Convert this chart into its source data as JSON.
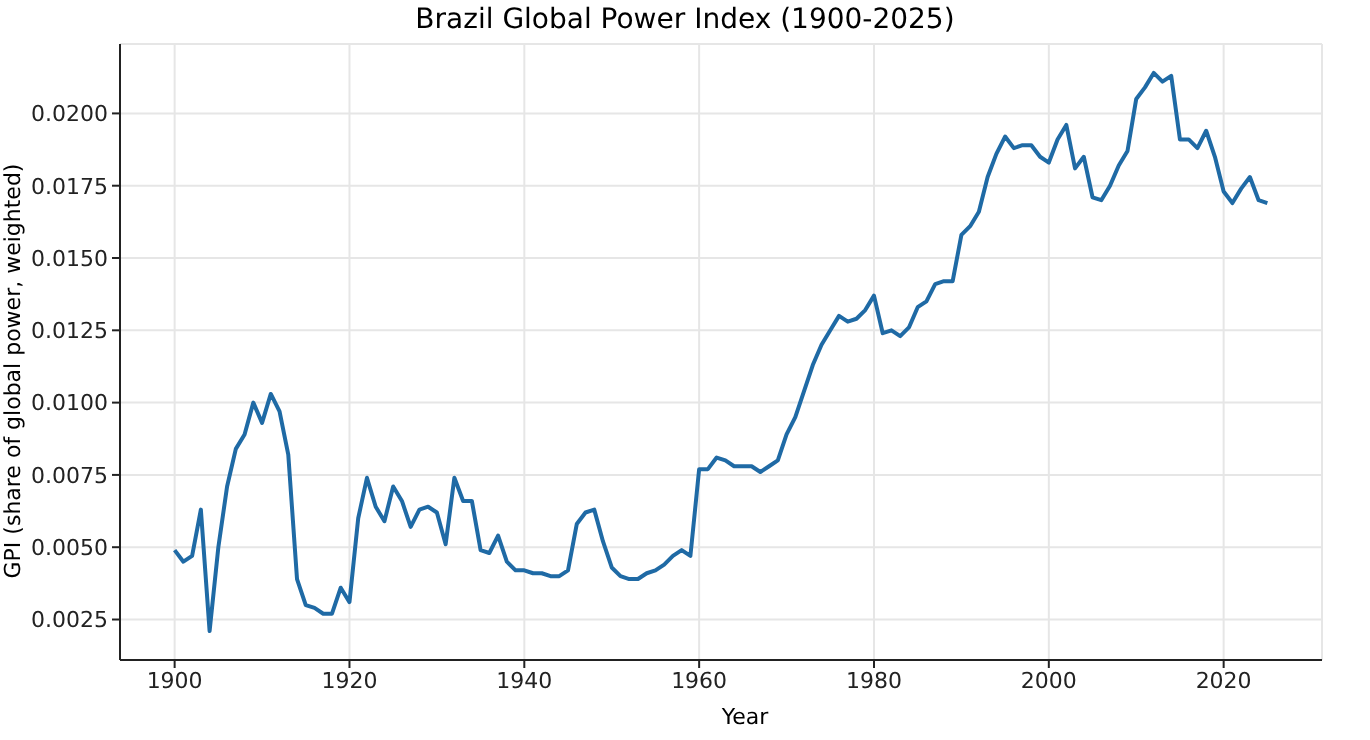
{
  "chart_data": {
    "type": "line",
    "title": "Brazil Global Power Index (1900-2025)",
    "xlabel": "Year",
    "ylabel": "GPI (share of global power, weighted)",
    "x": [
      1900,
      1901,
      1902,
      1903,
      1904,
      1905,
      1906,
      1907,
      1908,
      1909,
      1910,
      1911,
      1912,
      1913,
      1914,
      1915,
      1916,
      1917,
      1918,
      1919,
      1920,
      1921,
      1922,
      1923,
      1924,
      1925,
      1926,
      1927,
      1928,
      1929,
      1930,
      1931,
      1932,
      1933,
      1934,
      1935,
      1936,
      1937,
      1938,
      1939,
      1940,
      1941,
      1942,
      1943,
      1944,
      1945,
      1946,
      1947,
      1948,
      1949,
      1950,
      1951,
      1952,
      1953,
      1954,
      1955,
      1956,
      1957,
      1958,
      1959,
      1960,
      1961,
      1962,
      1963,
      1964,
      1965,
      1966,
      1967,
      1968,
      1969,
      1970,
      1971,
      1972,
      1973,
      1974,
      1975,
      1976,
      1977,
      1978,
      1979,
      1980,
      1981,
      1982,
      1983,
      1984,
      1985,
      1986,
      1987,
      1988,
      1989,
      1990,
      1991,
      1992,
      1993,
      1994,
      1995,
      1996,
      1997,
      1998,
      1999,
      2000,
      2001,
      2002,
      2003,
      2004,
      2005,
      2006,
      2007,
      2008,
      2009,
      2010,
      2011,
      2012,
      2013,
      2014,
      2015,
      2016,
      2017,
      2018,
      2019,
      2020,
      2021,
      2022,
      2023,
      2024,
      2025
    ],
    "series": [
      {
        "color": "#1f6aa5",
        "values": [
          0.0049,
          0.0045,
          0.0047,
          0.0063,
          0.0021,
          0.005,
          0.0071,
          0.0084,
          0.0089,
          0.01,
          0.0093,
          0.0103,
          0.0097,
          0.0082,
          0.0039,
          0.003,
          0.0029,
          0.0027,
          0.0027,
          0.0036,
          0.0031,
          0.006,
          0.0074,
          0.0064,
          0.0059,
          0.0071,
          0.0066,
          0.0057,
          0.0063,
          0.0064,
          0.0062,
          0.0051,
          0.0074,
          0.0066,
          0.0066,
          0.0049,
          0.0048,
          0.0054,
          0.0045,
          0.0042,
          0.0042,
          0.0041,
          0.0041,
          0.004,
          0.004,
          0.0042,
          0.0058,
          0.0062,
          0.0063,
          0.0052,
          0.0043,
          0.004,
          0.0039,
          0.0039,
          0.0041,
          0.0042,
          0.0044,
          0.0047,
          0.0049,
          0.0047,
          0.0077,
          0.0077,
          0.0081,
          0.008,
          0.0078,
          0.0078,
          0.0078,
          0.0076,
          0.0078,
          0.008,
          0.0089,
          0.0095,
          0.0104,
          0.0113,
          0.012,
          0.0125,
          0.013,
          0.0128,
          0.0129,
          0.0132,
          0.0137,
          0.0124,
          0.0125,
          0.0123,
          0.0126,
          0.0133,
          0.0135,
          0.0141,
          0.0142,
          0.0142,
          0.0158,
          0.0161,
          0.0166,
          0.0178,
          0.0186,
          0.0192,
          0.0188,
          0.0189,
          0.0189,
          0.0185,
          0.0183,
          0.0191,
          0.0196,
          0.0181,
          0.0185,
          0.0171,
          0.017,
          0.0175,
          0.0182,
          0.0187,
          0.0205,
          0.0209,
          0.0214,
          0.0211,
          0.0213,
          0.0191,
          0.0191,
          0.0188,
          0.0194,
          0.0185,
          0.0173,
          0.0169,
          0.0174,
          0.0178,
          0.017,
          0.0169
        ]
      }
    ],
    "xlim": [
      1893.75,
      2031.25
    ],
    "xticks": [
      1900,
      1920,
      1940,
      1960,
      1980,
      2000,
      2020
    ],
    "ylim": [
      0.0011,
      0.0224
    ],
    "yticks": [
      {
        "value": 0.0025,
        "label": "0.0025"
      },
      {
        "value": 0.005,
        "label": "0.0050"
      },
      {
        "value": 0.0075,
        "label": "0.0075"
      },
      {
        "value": 0.01,
        "label": "0.0100"
      },
      {
        "value": 0.0125,
        "label": "0.0125"
      },
      {
        "value": 0.015,
        "label": "0.0150"
      },
      {
        "value": 0.0175,
        "label": "0.0175"
      },
      {
        "value": 0.02,
        "label": "0.0200"
      }
    ],
    "grid": true,
    "marker": "none",
    "line_style": "solid"
  }
}
